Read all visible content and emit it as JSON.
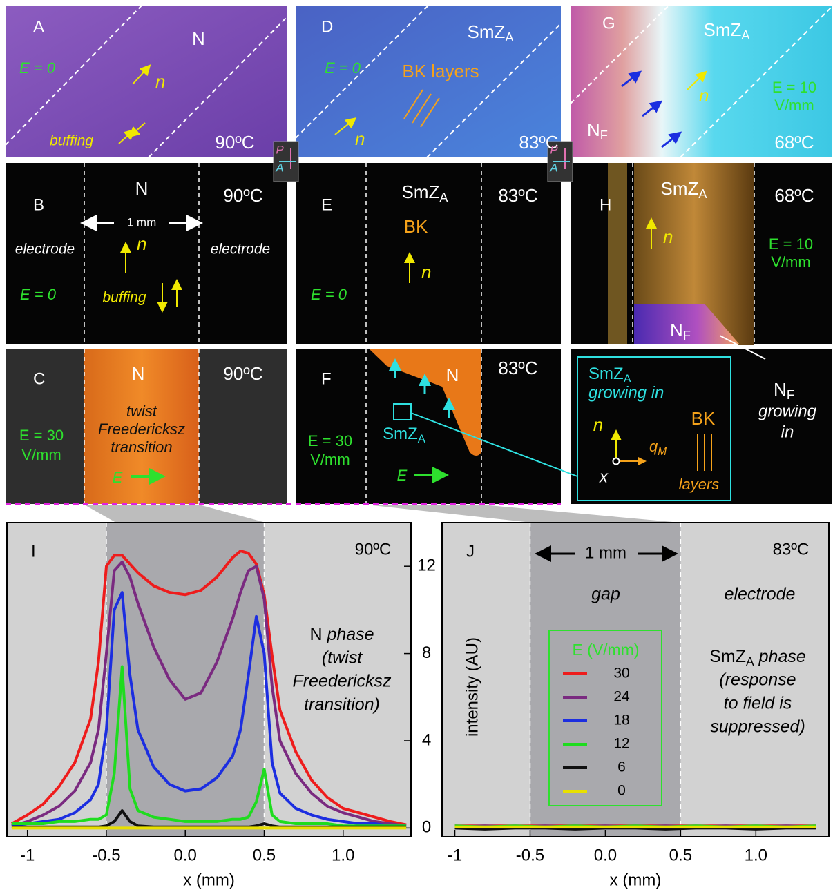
{
  "panels": [
    {
      "label": "A",
      "phase": "N",
      "field": "E = 0",
      "director": "n",
      "note": "buffing",
      "temp": "90ºC"
    },
    {
      "label": "B",
      "phase": "N",
      "scale": "1 mm",
      "left": "electrode",
      "right": "electrode",
      "director": "n",
      "field": "E = 0",
      "note": "buffing",
      "temp": "90ºC"
    },
    {
      "label": "C",
      "phase": "N",
      "field": [
        "E = 30",
        "V/mm"
      ],
      "note": [
        "twist",
        "Freedericksz",
        "transition"
      ],
      "vector": "E",
      "temp": "90ºC"
    },
    {
      "label": "D",
      "phase": {
        "text": "SmZ",
        "sub": "A"
      },
      "field": "E = 0",
      "note": "BK layers",
      "director": "n",
      "temp": "83ºC"
    },
    {
      "label": "E",
      "phase": {
        "text": "SmZ",
        "sub": "A"
      },
      "note": "BK",
      "director": "n",
      "field": "E = 0",
      "temp": "83ºC"
    },
    {
      "label": "F",
      "phase": "N",
      "inset": {
        "text": "SmZ",
        "sub": "A"
      },
      "field": [
        "E = 30",
        "V/mm"
      ],
      "vector": "E",
      "temp": "83ºC"
    },
    {
      "label": "G",
      "phase": {
        "text": "SmZ",
        "sub": "A"
      },
      "director": "n",
      "field": [
        "E = 10",
        "V/mm"
      ],
      "lower_phase": {
        "text": "N",
        "sub": "F"
      },
      "temp": "68ºC"
    },
    {
      "label": "H",
      "phase": {
        "text": "SmZ",
        "sub": "A"
      },
      "director": "n",
      "field": [
        "E = 10",
        "V/mm"
      ],
      "lower_phase": {
        "text": "N",
        "sub": "F"
      },
      "temp": "68ºC"
    }
  ],
  "polarizers": [
    {
      "P": "P",
      "A": "A"
    },
    {
      "P": "P",
      "A": "A"
    }
  ],
  "schematic": {
    "title": {
      "text": "SmZ",
      "sub": "A"
    },
    "subtitle": "growing in",
    "n": "n",
    "q": {
      "text": "q",
      "sub": "M"
    },
    "x": "x",
    "bk": "BK",
    "layers": "layers",
    "callout": {
      "text": "N",
      "sub": "F"
    },
    "callout_lines": [
      "growing",
      "in"
    ]
  },
  "chart_data": [
    {
      "type": "line",
      "title": "I",
      "temp": "90ºC",
      "x_label": "x (mm)",
      "xlim": [
        -1.13,
        1.43
      ],
      "ylim": [
        -0.4,
        14
      ],
      "xticks": [
        -1.0,
        -0.5,
        {
          "value": 0,
          "label": "0.0"
        },
        0.5,
        {
          "value": 1,
          "label": "1.0"
        }
      ],
      "yticks": [
        0,
        4,
        8,
        12
      ],
      "gap": [
        -0.5,
        0.5
      ],
      "annotation": [
        {
          "text": "N",
          "rest": " phase"
        },
        "(twist",
        "Freedericksz",
        "transition)"
      ],
      "x": [
        -1.1,
        -1.0,
        -0.9,
        -0.8,
        -0.7,
        -0.6,
        -0.55,
        -0.5,
        -0.45,
        -0.4,
        -0.35,
        -0.3,
        -0.2,
        -0.1,
        0,
        0.1,
        0.2,
        0.3,
        0.35,
        0.4,
        0.45,
        0.5,
        0.55,
        0.6,
        0.7,
        0.8,
        0.9,
        1.0,
        1.1,
        1.2,
        1.3,
        1.4
      ],
      "series": [
        {
          "name": "30",
          "color": "#ee1c1c",
          "values": [
            0.2,
            0.6,
            1.1,
            1.9,
            3.0,
            5.0,
            7.6,
            12.0,
            12.5,
            12.5,
            12.1,
            11.7,
            11.1,
            10.8,
            10.7,
            10.9,
            11.5,
            12.4,
            12.7,
            12.6,
            12.1,
            10.7,
            7.9,
            5.4,
            3.5,
            2.2,
            1.4,
            0.9,
            0.7,
            0.5,
            0.3,
            0.15
          ]
        },
        {
          "name": "24",
          "color": "#7a2a80",
          "values": [
            0.1,
            0.3,
            0.6,
            1.0,
            1.7,
            3.0,
            4.5,
            8.0,
            11.8,
            12.2,
            11.5,
            10.3,
            8.3,
            6.8,
            5.9,
            6.2,
            7.6,
            9.6,
            10.8,
            11.8,
            12.0,
            10.5,
            6.5,
            4.0,
            2.5,
            1.6,
            1.0,
            0.7,
            0.5,
            0.3,
            0.2,
            0.1
          ]
        },
        {
          "name": "18",
          "color": "#1c2ee0",
          "values": [
            0.1,
            0.2,
            0.3,
            0.4,
            0.7,
            1.3,
            2.0,
            4.5,
            10.0,
            10.8,
            7.0,
            4.5,
            2.8,
            2.0,
            1.7,
            1.8,
            2.3,
            3.3,
            4.5,
            7.0,
            9.7,
            8.0,
            3.0,
            1.6,
            0.9,
            0.6,
            0.4,
            0.3,
            0.2,
            0.2,
            0.1,
            0.1
          ]
        },
        {
          "name": "12",
          "color": "#1edc1e",
          "values": [
            0.2,
            0.2,
            0.2,
            0.3,
            0.3,
            0.4,
            0.4,
            0.6,
            2.5,
            7.4,
            1.8,
            0.8,
            0.5,
            0.4,
            0.3,
            0.3,
            0.3,
            0.4,
            0.4,
            0.5,
            1.2,
            2.7,
            0.6,
            0.3,
            0.2,
            0.2,
            0.2,
            0.1,
            0.1,
            0.1,
            0.1,
            0.1
          ]
        },
        {
          "name": "6",
          "color": "#111111",
          "values": [
            0.05,
            0.05,
            0.05,
            0.05,
            0.05,
            0.05,
            0.05,
            0.1,
            0.3,
            0.8,
            0.3,
            0.1,
            0.05,
            0.05,
            0.05,
            0.05,
            0.05,
            0.05,
            0.05,
            0.05,
            0.1,
            0.2,
            0.1,
            0.05,
            0.05,
            0.05,
            0.05,
            0.05,
            0.05,
            0.05,
            0.05,
            0.05
          ]
        },
        {
          "name": "0",
          "color": "#e8e000",
          "values": [
            0.0,
            0.0,
            0.0,
            0.0,
            0.0,
            0.0,
            0.0,
            0.0,
            0.0,
            0.0,
            0.0,
            0.0,
            0.0,
            0.0,
            0.0,
            0.0,
            0.0,
            0.0,
            0.0,
            0.0,
            0.0,
            0.0,
            0.0,
            0.0,
            0.0,
            0.0,
            0.0,
            0.0,
            0.0,
            0.0,
            0.0,
            0.0
          ]
        }
      ]
    },
    {
      "type": "line",
      "title": "J",
      "temp": "83ºC",
      "x_label": "x (mm)",
      "y_label": "intensity (AU)",
      "xlim": [
        -1.085,
        1.485
      ],
      "ylim": [
        -0.4,
        14
      ],
      "xticks": [
        -1.0,
        -0.5,
        {
          "value": 0,
          "label": "0.0"
        },
        0.5,
        {
          "value": 1,
          "label": "1.0"
        }
      ],
      "gap": [
        -0.5,
        0.5
      ],
      "scale": "1 mm",
      "gap_label": "gap",
      "electrode_label": "electrode",
      "annotation": [
        {
          "text": "SmZ",
          "sub": "A",
          "rest": " phase"
        },
        "(response",
        "to field is",
        "suppressed)"
      ],
      "legend_title": "E (V/mm)",
      "x": [
        -1.0,
        -0.8,
        -0.6,
        -0.4,
        -0.2,
        0,
        0.2,
        0.4,
        0.6,
        0.8,
        1.0,
        1.2,
        1.4
      ],
      "series": [
        {
          "name": "30",
          "color": "#ee1c1c",
          "values": [
            0.1,
            0.1,
            0.1,
            0.1,
            0.1,
            0.1,
            0.1,
            0.1,
            0.1,
            0.1,
            0.1,
            0.1,
            0.1
          ]
        },
        {
          "name": "24",
          "color": "#7a2a80",
          "values": [
            0.05,
            0.1,
            0.05,
            0.1,
            0.05,
            0.1,
            0.05,
            0.1,
            0.05,
            0.1,
            0.05,
            0.1,
            0.05
          ]
        },
        {
          "name": "18",
          "color": "#1c2ee0",
          "values": [
            0.05,
            0.05,
            0.05,
            0.05,
            0.05,
            0.05,
            0.05,
            0.05,
            0.05,
            0.05,
            0.05,
            0.05,
            0.05
          ]
        },
        {
          "name": "12",
          "color": "#1edc1e",
          "values": [
            0.1,
            0.05,
            0.1,
            0.05,
            0.1,
            0.05,
            0.1,
            0.05,
            0.1,
            0.05,
            0.1,
            0.05,
            0.1
          ]
        },
        {
          "name": "6",
          "color": "#111111",
          "values": [
            0.0,
            -0.05,
            0.0,
            0.0,
            -0.05,
            0.0,
            0.0,
            -0.05,
            0.0,
            0.0,
            -0.05,
            0.0,
            0.0
          ]
        },
        {
          "name": "0",
          "color": "#e8e000",
          "values": [
            0.05,
            0.05,
            0.05,
            0.05,
            0.05,
            0.05,
            0.05,
            0.05,
            0.05,
            0.05,
            0.05,
            0.05,
            0.05
          ]
        }
      ]
    }
  ]
}
